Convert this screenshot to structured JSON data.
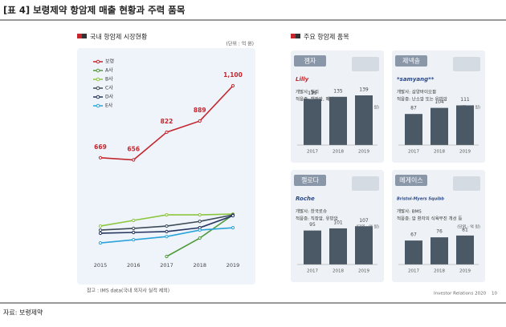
{
  "header": {
    "title": "[표 4] 보령제약 항암제 매출 현황과 주력 품목"
  },
  "left": {
    "title": "국내 항암제 시장현황",
    "unit": "(단위 : 억 원)",
    "note": "참고 : IMS data(국내 외자사 실적 제외)",
    "chart_data": {
      "type": "line",
      "categories": [
        "2015",
        "2016",
        "2017",
        "2018",
        "2019"
      ],
      "series": [
        {
          "name": "보령",
          "color": "#c4262e",
          "values": [
            669,
            656,
            822,
            889,
            1100
          ],
          "value_labels": [
            "669",
            "656",
            "822",
            "889",
            "1,100"
          ]
        },
        {
          "name": "A사",
          "color": "#4f9a3c",
          "values": [
            null,
            null,
            78,
            188,
            327
          ]
        },
        {
          "name": "B사",
          "color": "#8cc63f",
          "values": [
            260,
            294,
            327,
            327,
            332
          ]
        },
        {
          "name": "C사",
          "color": "#3d4a57",
          "values": [
            236,
            246,
            260,
            288,
            327
          ]
        },
        {
          "name": "D사",
          "color": "#25355f",
          "values": [
            217,
            222,
            227,
            250,
            322
          ]
        },
        {
          "name": "E사",
          "color": "#2aa3d8",
          "values": [
            159,
            178,
            197,
            236,
            250
          ]
        }
      ]
    }
  },
  "right": {
    "title": "주요 항암제 품목",
    "cards": [
      {
        "name": "젬자",
        "logo": "Lilly",
        "developer": "개발사: 릴리",
        "indication": "적응증: 췌장암, 폐암",
        "unit": "(단위 : 억 원)",
        "chart_data": {
          "type": "bar",
          "categories": [
            "2017",
            "2018",
            "2019"
          ],
          "values": [
            129,
            135,
            139
          ]
        }
      },
      {
        "name": "제넥솔",
        "logo": "*samyang**",
        "developer": "개발사: 삼양바이오팜",
        "indication": "적응증: 난소암 또는 유방암",
        "unit": "(단위 : 억 원)",
        "chart_data": {
          "type": "bar",
          "categories": [
            "2017",
            "2018",
            "2019"
          ],
          "values": [
            87,
            104,
            111
          ]
        }
      },
      {
        "name": "젤로다",
        "logo": "Roche",
        "developer": "개발사: 한국로슈",
        "indication": "적응증: 직장암, 유방암",
        "unit": "(단위 : 억 원)",
        "chart_data": {
          "type": "bar",
          "categories": [
            "2017",
            "2018",
            "2019"
          ],
          "values": [
            95,
            101,
            107
          ]
        }
      },
      {
        "name": "메게이스",
        "logo": "Bristol-Myers Squibb",
        "developer": "개발사: BMS",
        "indication": "적응증: 암 환자의 식욕부진 개선 등",
        "unit": "(단위 : 억 원)",
        "chart_data": {
          "type": "bar",
          "categories": [
            "2017",
            "2018",
            "2019"
          ],
          "values": [
            67,
            76,
            81
          ]
        }
      }
    ]
  },
  "footer": {
    "ir": "Investor Relations 2020",
    "page": "10"
  },
  "source": "자료: 보령제약"
}
